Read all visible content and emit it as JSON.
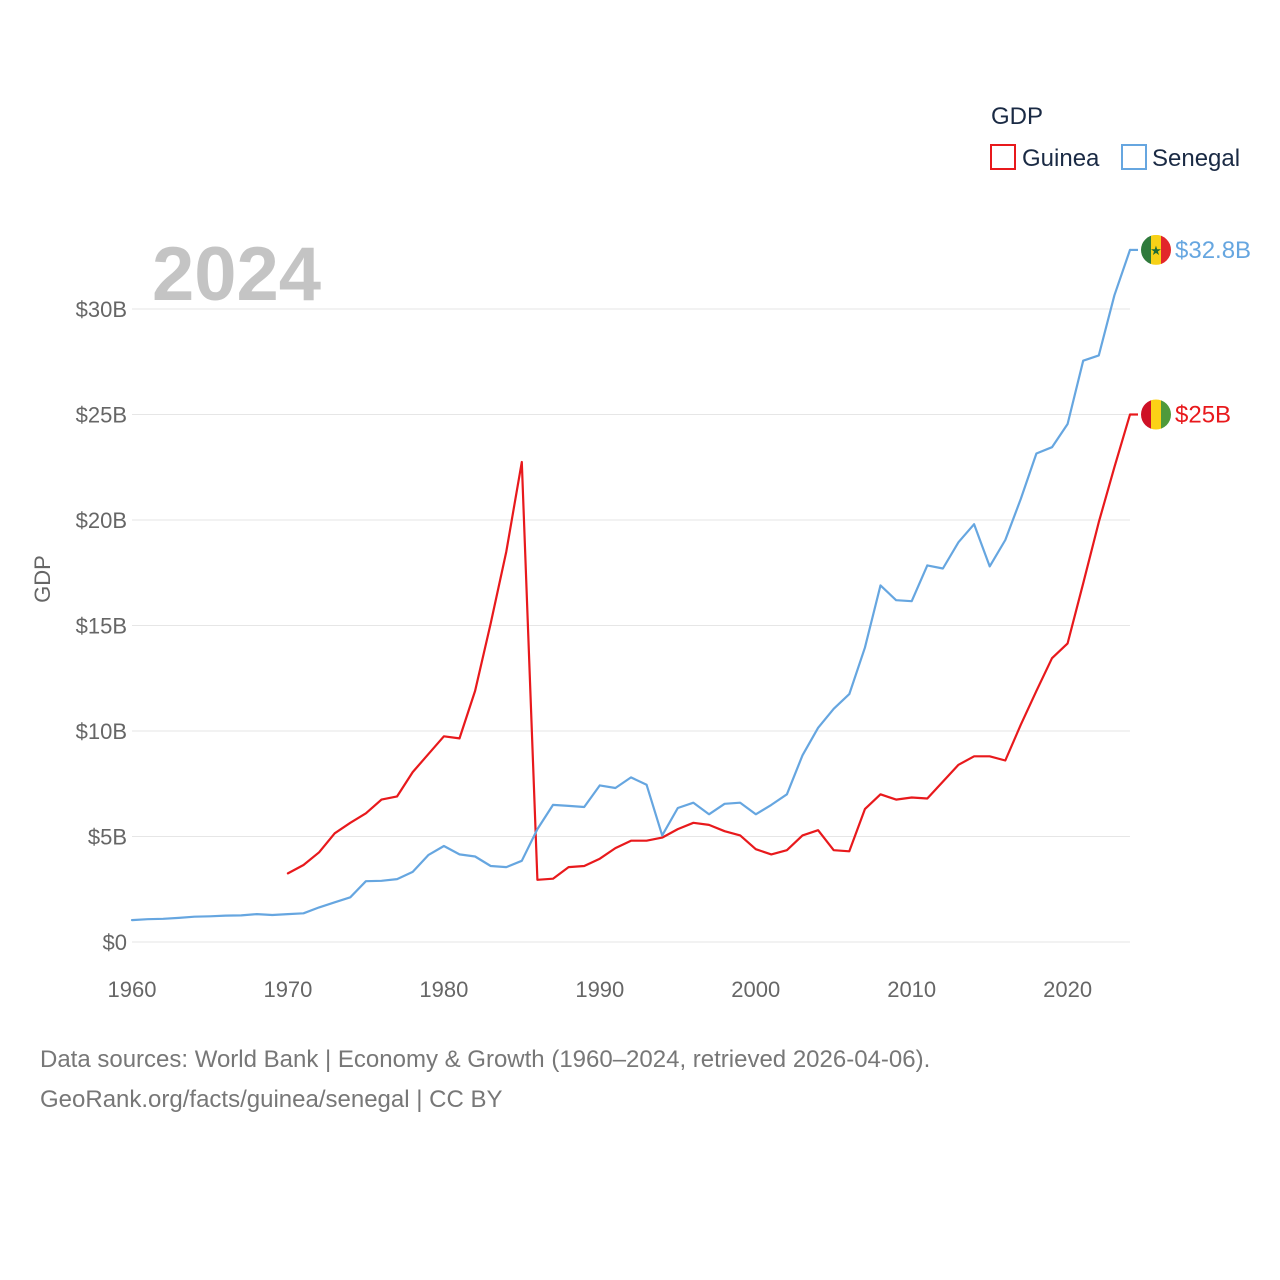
{
  "chart_data": {
    "type": "line",
    "title": "GDP",
    "ylabel": "GDP",
    "xlabel": "",
    "current_year_label": "2024",
    "xlim": [
      1960,
      2024
    ],
    "ylim": [
      0,
      33
    ],
    "x_ticks": [
      1960,
      1970,
      1980,
      1990,
      2000,
      2010,
      2020
    ],
    "x_tick_labels": [
      "1960",
      "1970",
      "1980",
      "1990",
      "2000",
      "2010",
      "2020"
    ],
    "y_ticks": [
      0,
      5,
      10,
      15,
      20,
      25,
      30
    ],
    "y_tick_labels": [
      "$0",
      "$5B",
      "$10B",
      "$15B",
      "$20B",
      "$25B",
      "$30B"
    ],
    "legend": {
      "title": "GDP",
      "position": "top-right"
    },
    "series": [
      {
        "name": "Guinea",
        "color": "#e8191c",
        "end_label": "$25B",
        "flag": "guinea-flag",
        "x": [
          1970,
          1971,
          1972,
          1973,
          1974,
          1975,
          1976,
          1977,
          1978,
          1979,
          1980,
          1981,
          1982,
          1983,
          1984,
          1985,
          1986,
          1987,
          1988,
          1989,
          1990,
          1991,
          1992,
          1993,
          1994,
          1995,
          1996,
          1997,
          1998,
          1999,
          2000,
          2001,
          2002,
          2003,
          2004,
          2005,
          2006,
          2007,
          2008,
          2009,
          2010,
          2011,
          2012,
          2013,
          2014,
          2015,
          2016,
          2017,
          2018,
          2019,
          2020,
          2021,
          2022,
          2023,
          2024
        ],
        "values": [
          3.25,
          3.65,
          4.25,
          5.15,
          5.65,
          6.1,
          6.75,
          6.9,
          8.05,
          8.9,
          9.75,
          9.65,
          11.9,
          15.1,
          18.5,
          22.75,
          2.95,
          3.0,
          3.55,
          3.6,
          3.95,
          4.45,
          4.8,
          4.8,
          4.95,
          5.35,
          5.65,
          5.55,
          5.25,
          5.05,
          4.4,
          4.15,
          4.35,
          5.05,
          5.3,
          4.35,
          4.3,
          6.3,
          7.0,
          6.75,
          6.85,
          6.8,
          7.6,
          8.4,
          8.8,
          8.8,
          8.6,
          10.3,
          11.9,
          13.45,
          14.15,
          17.0,
          19.9,
          22.5,
          25.0
        ]
      },
      {
        "name": "Senegal",
        "color": "#66a6e0",
        "end_label": "$32.8B",
        "flag": "senegal-flag",
        "x": [
          1960,
          1961,
          1962,
          1963,
          1964,
          1965,
          1966,
          1967,
          1968,
          1969,
          1970,
          1971,
          1972,
          1973,
          1974,
          1975,
          1976,
          1977,
          1978,
          1979,
          1980,
          1981,
          1982,
          1983,
          1984,
          1985,
          1986,
          1987,
          1988,
          1989,
          1990,
          1991,
          1992,
          1993,
          1994,
          1995,
          1996,
          1997,
          1998,
          1999,
          2000,
          2001,
          2002,
          2003,
          2004,
          2005,
          2006,
          2007,
          2008,
          2009,
          2010,
          2011,
          2012,
          2013,
          2014,
          2015,
          2016,
          2017,
          2018,
          2019,
          2020,
          2021,
          2022,
          2023,
          2024
        ],
        "values": [
          1.04,
          1.08,
          1.1,
          1.14,
          1.2,
          1.22,
          1.25,
          1.26,
          1.32,
          1.28,
          1.32,
          1.36,
          1.64,
          1.88,
          2.12,
          2.88,
          2.9,
          2.98,
          3.32,
          4.12,
          4.55,
          4.15,
          4.05,
          3.6,
          3.55,
          3.85,
          5.35,
          6.5,
          6.45,
          6.4,
          7.42,
          7.3,
          7.8,
          7.45,
          5.05,
          6.35,
          6.6,
          6.05,
          6.55,
          6.6,
          6.05,
          6.5,
          7.0,
          8.85,
          10.15,
          11.05,
          11.75,
          13.95,
          16.9,
          16.2,
          16.15,
          17.85,
          17.7,
          18.95,
          19.8,
          17.8,
          19.05,
          21.0,
          23.15,
          23.45,
          24.55,
          27.55,
          27.8,
          30.65,
          32.8
        ]
      }
    ]
  },
  "footer": {
    "line1": "Data sources: World Bank | Economy & Growth (1960–2024, retrieved 2026-04-06).",
    "line2": "GeoRank.org/facts/guinea/senegal | CC BY"
  }
}
